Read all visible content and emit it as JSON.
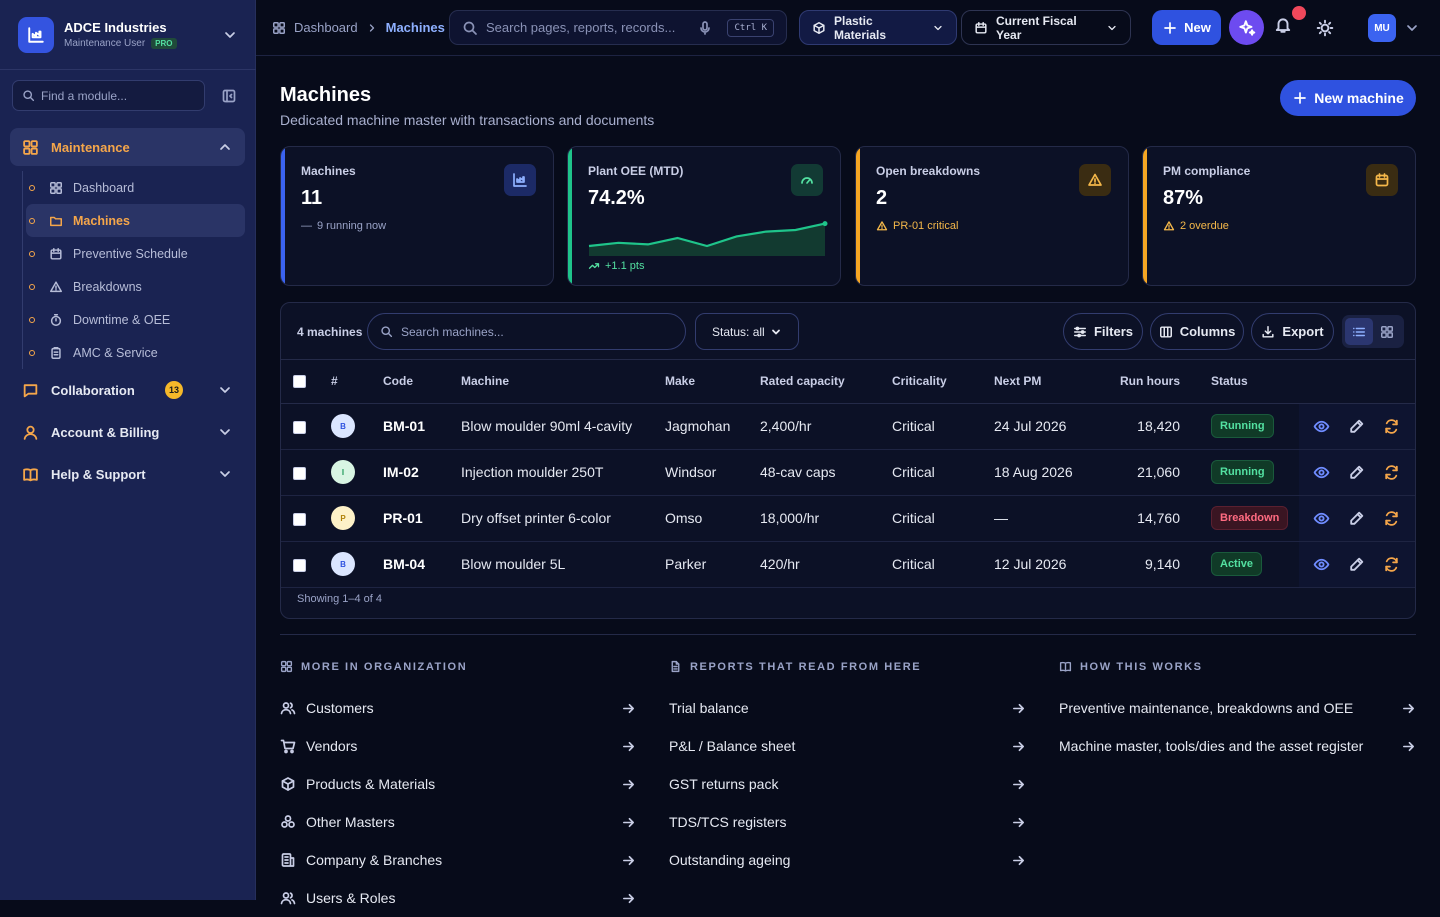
{
  "org": {
    "name": "ADCE Industries",
    "role": "Maintenance User",
    "plan": "PRO"
  },
  "sidebar": {
    "find_placeholder": "Find a module...",
    "sections": [
      {
        "label": "Maintenance",
        "icon": "grid-icon"
      },
      {
        "label": "Collaboration",
        "badge": "13",
        "icon": "chat-icon"
      },
      {
        "label": "Account & Billing",
        "icon": "user-icon"
      },
      {
        "label": "Help & Support",
        "icon": "book-icon"
      }
    ],
    "maintenance_items": [
      {
        "label": "Dashboard",
        "icon": "grid-icon"
      },
      {
        "label": "Machines",
        "icon": "folder-icon",
        "active": true
      },
      {
        "label": "Preventive Schedule",
        "icon": "calendar-icon"
      },
      {
        "label": "Breakdowns",
        "icon": "warning-icon"
      },
      {
        "label": "Downtime & OEE",
        "icon": "timer-icon"
      },
      {
        "label": "AMC & Service",
        "icon": "clipboard-icon"
      }
    ]
  },
  "topbar": {
    "breadcrumb": [
      "Dashboard",
      "Machines"
    ],
    "search_placeholder": "Search pages, reports, records...",
    "shortcut": "Ctrl K",
    "business_unit": "Plastic Materials",
    "period": "Current Fiscal Year",
    "new_label": "New",
    "user_initials": "MU"
  },
  "page": {
    "title": "Machines",
    "subtitle": "Dedicated machine master with transactions and documents",
    "new_button": "New machine"
  },
  "kpis": [
    {
      "label": "Machines",
      "value": "11",
      "note": "9 running now",
      "accent": "#3b63f0"
    },
    {
      "label": "Plant OEE (MTD)",
      "value": "74.2%",
      "note": "+1.1 pts",
      "accent": "#1fc48a",
      "sparkline": [
        0.25,
        0.35,
        0.3,
        0.5,
        0.25,
        0.55,
        0.7,
        0.75,
        0.95
      ]
    },
    {
      "label": "Open breakdowns",
      "value": "2",
      "note": "PR-01 critical",
      "accent": "#f5a623"
    },
    {
      "label": "PM compliance",
      "value": "87%",
      "note": "2 overdue",
      "accent": "#f5a623"
    }
  ],
  "table": {
    "count_label": "4 machines",
    "search_placeholder": "Search machines...",
    "status_filter": "Status: all",
    "filters_label": "Filters",
    "columns_label": "Columns",
    "export_label": "Export",
    "headers": [
      "#",
      "Code",
      "Machine",
      "Make",
      "Rated capacity",
      "Criticality",
      "Next PM",
      "Run hours",
      "Status"
    ],
    "rows": [
      {
        "initial": "B",
        "code": "BM-01",
        "machine": "Blow moulder 90ml 4-cavity",
        "make": "Jagmohan",
        "capacity": "2,400/hr",
        "criticality": "Critical",
        "next_pm": "24 Jul 2026",
        "run_hours": "18,420",
        "status": "Running",
        "status_kind": "green",
        "circle": "#dbe6ff",
        "circle_fg": "#2f52e0"
      },
      {
        "initial": "I",
        "code": "IM-02",
        "machine": "Injection moulder 250T",
        "make": "Windsor",
        "capacity": "48-cav caps",
        "criticality": "Critical",
        "next_pm": "18 Aug 2026",
        "run_hours": "21,060",
        "status": "Running",
        "status_kind": "green",
        "circle": "#d8f5e3",
        "circle_fg": "#1f9a5a"
      },
      {
        "initial": "P",
        "code": "PR-01",
        "machine": "Dry offset printer 6-color",
        "make": "Omso",
        "capacity": "18,000/hr",
        "criticality": "Critical",
        "next_pm": "—",
        "run_hours": "14,760",
        "status": "Breakdown",
        "status_kind": "red",
        "circle": "#fdf1c8",
        "circle_fg": "#b0820a"
      },
      {
        "initial": "B",
        "code": "BM-04",
        "machine": "Blow moulder 5L",
        "make": "Parker",
        "capacity": "420/hr",
        "criticality": "Critical",
        "next_pm": "12 Jul 2026",
        "run_hours": "9,140",
        "status": "Active",
        "status_kind": "green",
        "circle": "#dbe6ff",
        "circle_fg": "#2f52e0"
      }
    ],
    "footer": "Showing 1–4 of 4"
  },
  "related": {
    "more": {
      "title": "MORE IN ORGANIZATION",
      "items": [
        {
          "label": "Customers",
          "icon": "users-icon"
        },
        {
          "label": "Vendors",
          "icon": "cart-icon"
        },
        {
          "label": "Products & Materials",
          "icon": "box-icon"
        },
        {
          "label": "Other Masters",
          "icon": "layers-icon"
        },
        {
          "label": "Company & Branches",
          "icon": "building-icon"
        },
        {
          "label": "Users & Roles",
          "icon": "users-icon"
        }
      ]
    },
    "reports": {
      "title": "REPORTS THAT READ FROM HERE",
      "items": [
        "Trial balance",
        "P&L / Balance sheet",
        "GST returns pack",
        "TDS/TCS registers",
        "Outstanding ageing"
      ]
    },
    "how": {
      "title": "HOW THIS WORKS",
      "items": [
        "Preventive maintenance, breakdowns and OEE",
        "Machine master, tools/dies and the asset register"
      ]
    }
  }
}
